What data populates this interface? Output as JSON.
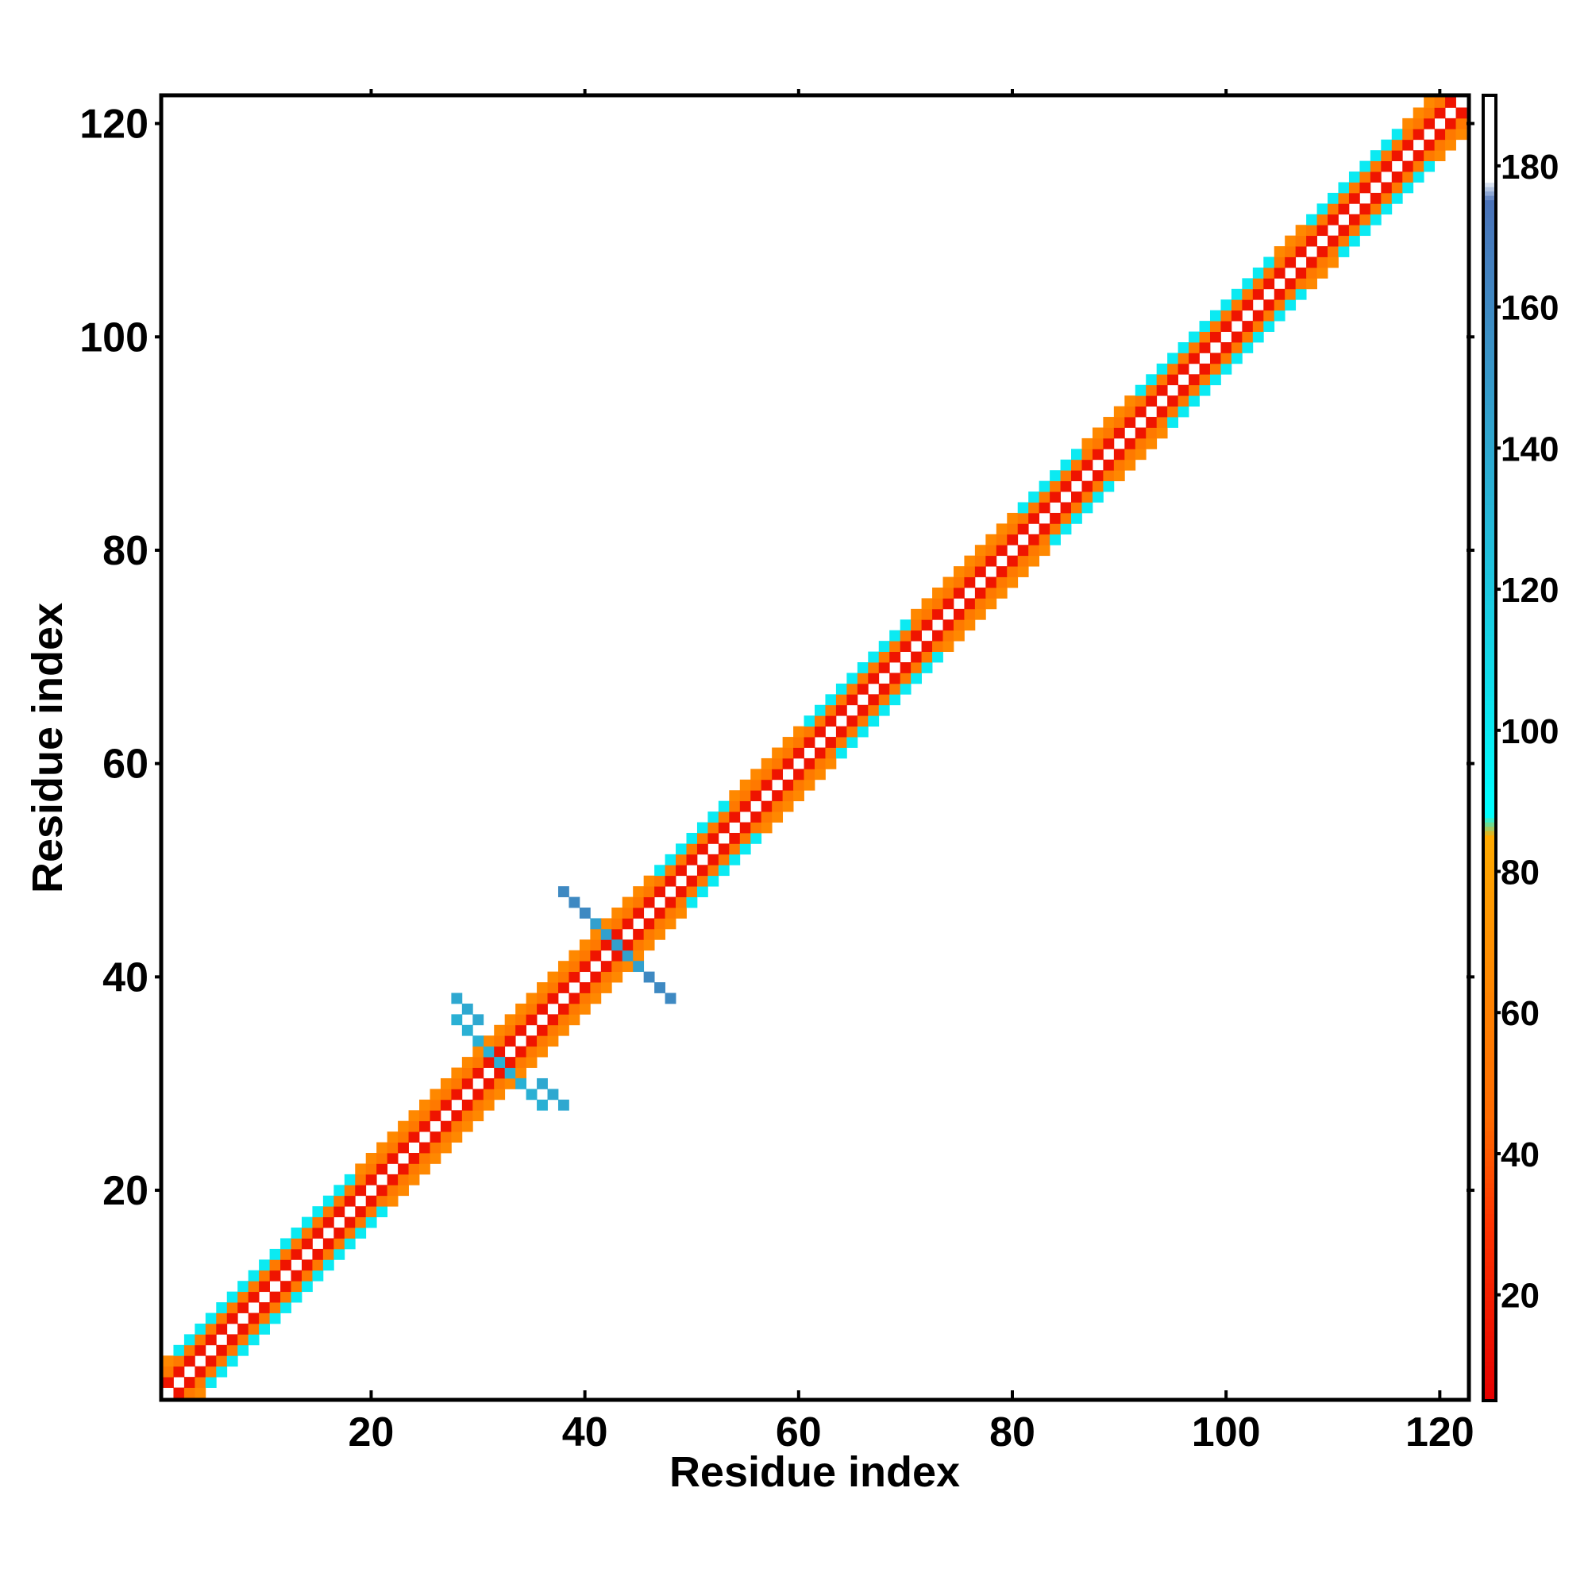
{
  "chart_data": {
    "type": "heatmap",
    "title": "",
    "xlabel": "Residue index",
    "ylabel": "Residue index",
    "xlim": [
      0.5,
      122.5
    ],
    "ylim": [
      0.5,
      122.5
    ],
    "x_ticks": [
      20,
      40,
      60,
      80,
      100,
      120
    ],
    "y_ticks": [
      20,
      40,
      60,
      80,
      100,
      120
    ],
    "diagonal_pattern": {
      "description": "symmetric banded contact/distance map around the diagonal, offsets 1-3 residues",
      "offset_1_value": 15,
      "offset_2_value": 55,
      "offset_3_value": 65,
      "helix_like_offset_3_value": 100,
      "sheet_like_ranges": [
        [
          2,
          18
        ],
        [
          47,
          53
        ],
        [
          61,
          70
        ],
        [
          81,
          86
        ],
        [
          92,
          104
        ],
        [
          108,
          116
        ]
      ]
    },
    "off_diagonal_segments": [
      {
        "points": [
          [
            31,
            33
          ],
          [
            32,
            32
          ],
          [
            33,
            31
          ],
          [
            34,
            30
          ],
          [
            35,
            29
          ],
          [
            36,
            28
          ]
        ],
        "value": 135
      },
      {
        "points": [
          [
            30,
            36
          ],
          [
            29,
            37
          ],
          [
            28,
            38
          ]
        ],
        "value": 140
      },
      {
        "points": [
          [
            42,
            44
          ],
          [
            43,
            43
          ],
          [
            44,
            42
          ],
          [
            45,
            41
          ],
          [
            46,
            40
          ],
          [
            47,
            39
          ],
          [
            48,
            38
          ]
        ],
        "value": 145
      },
      {
        "points": [
          [
            40,
            46
          ],
          [
            39,
            47
          ],
          [
            38,
            48
          ]
        ],
        "value": 160
      }
    ],
    "colorbar": {
      "ticks": [
        20,
        40,
        60,
        80,
        100,
        120,
        140,
        160,
        180
      ],
      "range": [
        5,
        190
      ],
      "stops": [
        {
          "value": 5,
          "color": "#e50000"
        },
        {
          "value": 30,
          "color": "#ff3300"
        },
        {
          "value": 45,
          "color": "#ff6a00"
        },
        {
          "value": 60,
          "color": "#ff8000"
        },
        {
          "value": 85,
          "color": "#ffaa00"
        },
        {
          "value": 88,
          "color": "#00ffff"
        },
        {
          "value": 110,
          "color": "#14d8e8"
        },
        {
          "value": 140,
          "color": "#2ea8d0"
        },
        {
          "value": 175,
          "color": "#4a72b8"
        },
        {
          "value": 178,
          "color": "#ffffff"
        },
        {
          "value": 190,
          "color": "#ffffff"
        }
      ]
    },
    "grid": false,
    "legend": "colorbar-right"
  }
}
